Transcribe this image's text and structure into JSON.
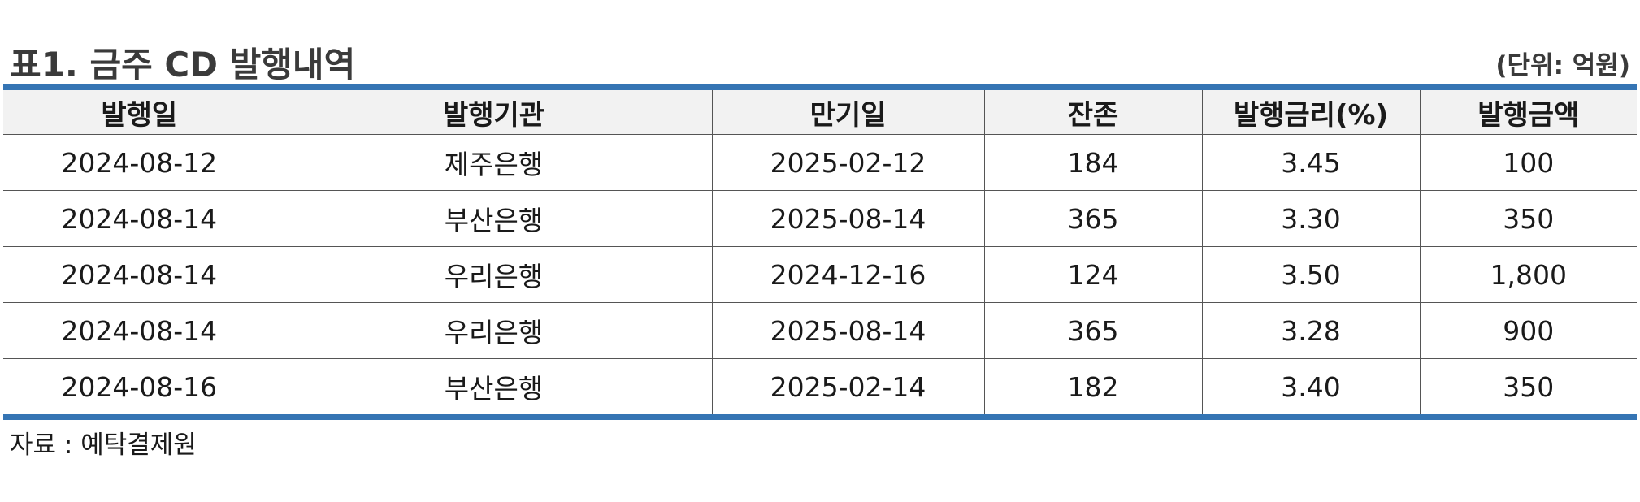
{
  "title": "표1. 금주 CD 발행내역",
  "unit": "(단위: 억원)",
  "table": {
    "headers": [
      "발행일",
      "발행기관",
      "만기일",
      "잔존",
      "발행금리(%)",
      "발행금액"
    ],
    "rows": [
      [
        "2024-08-12",
        "제주은행",
        "2025-02-12",
        "184",
        "3.45",
        "100"
      ],
      [
        "2024-08-14",
        "부산은행",
        "2025-08-14",
        "365",
        "3.30",
        "350"
      ],
      [
        "2024-08-14",
        "우리은행",
        "2024-12-16",
        "124",
        "3.50",
        "1,800"
      ],
      [
        "2024-08-14",
        "우리은행",
        "2025-08-14",
        "365",
        "3.28",
        "900"
      ],
      [
        "2024-08-16",
        "부산은행",
        "2025-02-14",
        "182",
        "3.40",
        "350"
      ]
    ]
  },
  "source": "자료 : 예탁결제원",
  "colors": {
    "accent": "#3575b4",
    "header_bg": "#f2f2f2",
    "title_text": "#3a3a3a"
  }
}
